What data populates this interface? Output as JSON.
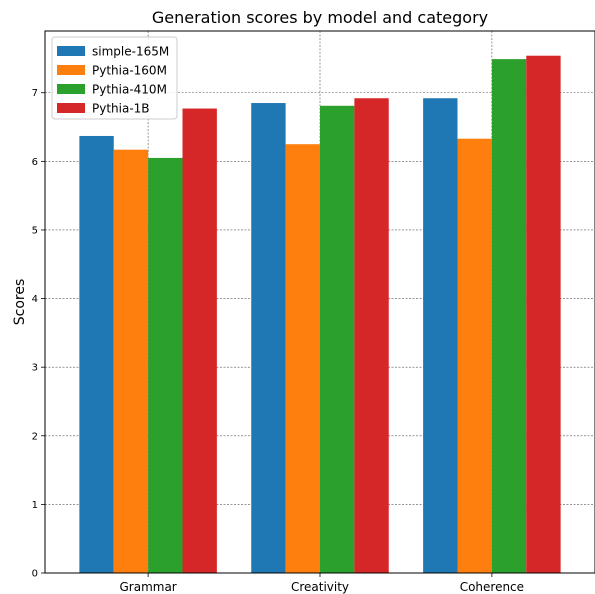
{
  "chart_data": {
    "type": "bar",
    "title": "Generation scores by model and category",
    "xlabel": "",
    "ylabel": "Scores",
    "categories": [
      "Grammar",
      "Creativity",
      "Coherence"
    ],
    "ylim": [
      0,
      7.9
    ],
    "yticks": [
      0,
      1,
      2,
      3,
      4,
      5,
      6,
      7
    ],
    "grid": true,
    "legend_position": "top-left",
    "series": [
      {
        "name": "simple-165M",
        "color": "#1f77b4",
        "values": [
          6.37,
          6.85,
          6.92
        ]
      },
      {
        "name": "Pythia-160M",
        "color": "#ff7f0e",
        "values": [
          6.17,
          6.25,
          6.33
        ]
      },
      {
        "name": "Pythia-410M",
        "color": "#2ca02c",
        "values": [
          6.05,
          6.81,
          7.49
        ]
      },
      {
        "name": "Pythia-1B",
        "color": "#d62728",
        "values": [
          6.77,
          6.92,
          7.54
        ]
      }
    ]
  }
}
